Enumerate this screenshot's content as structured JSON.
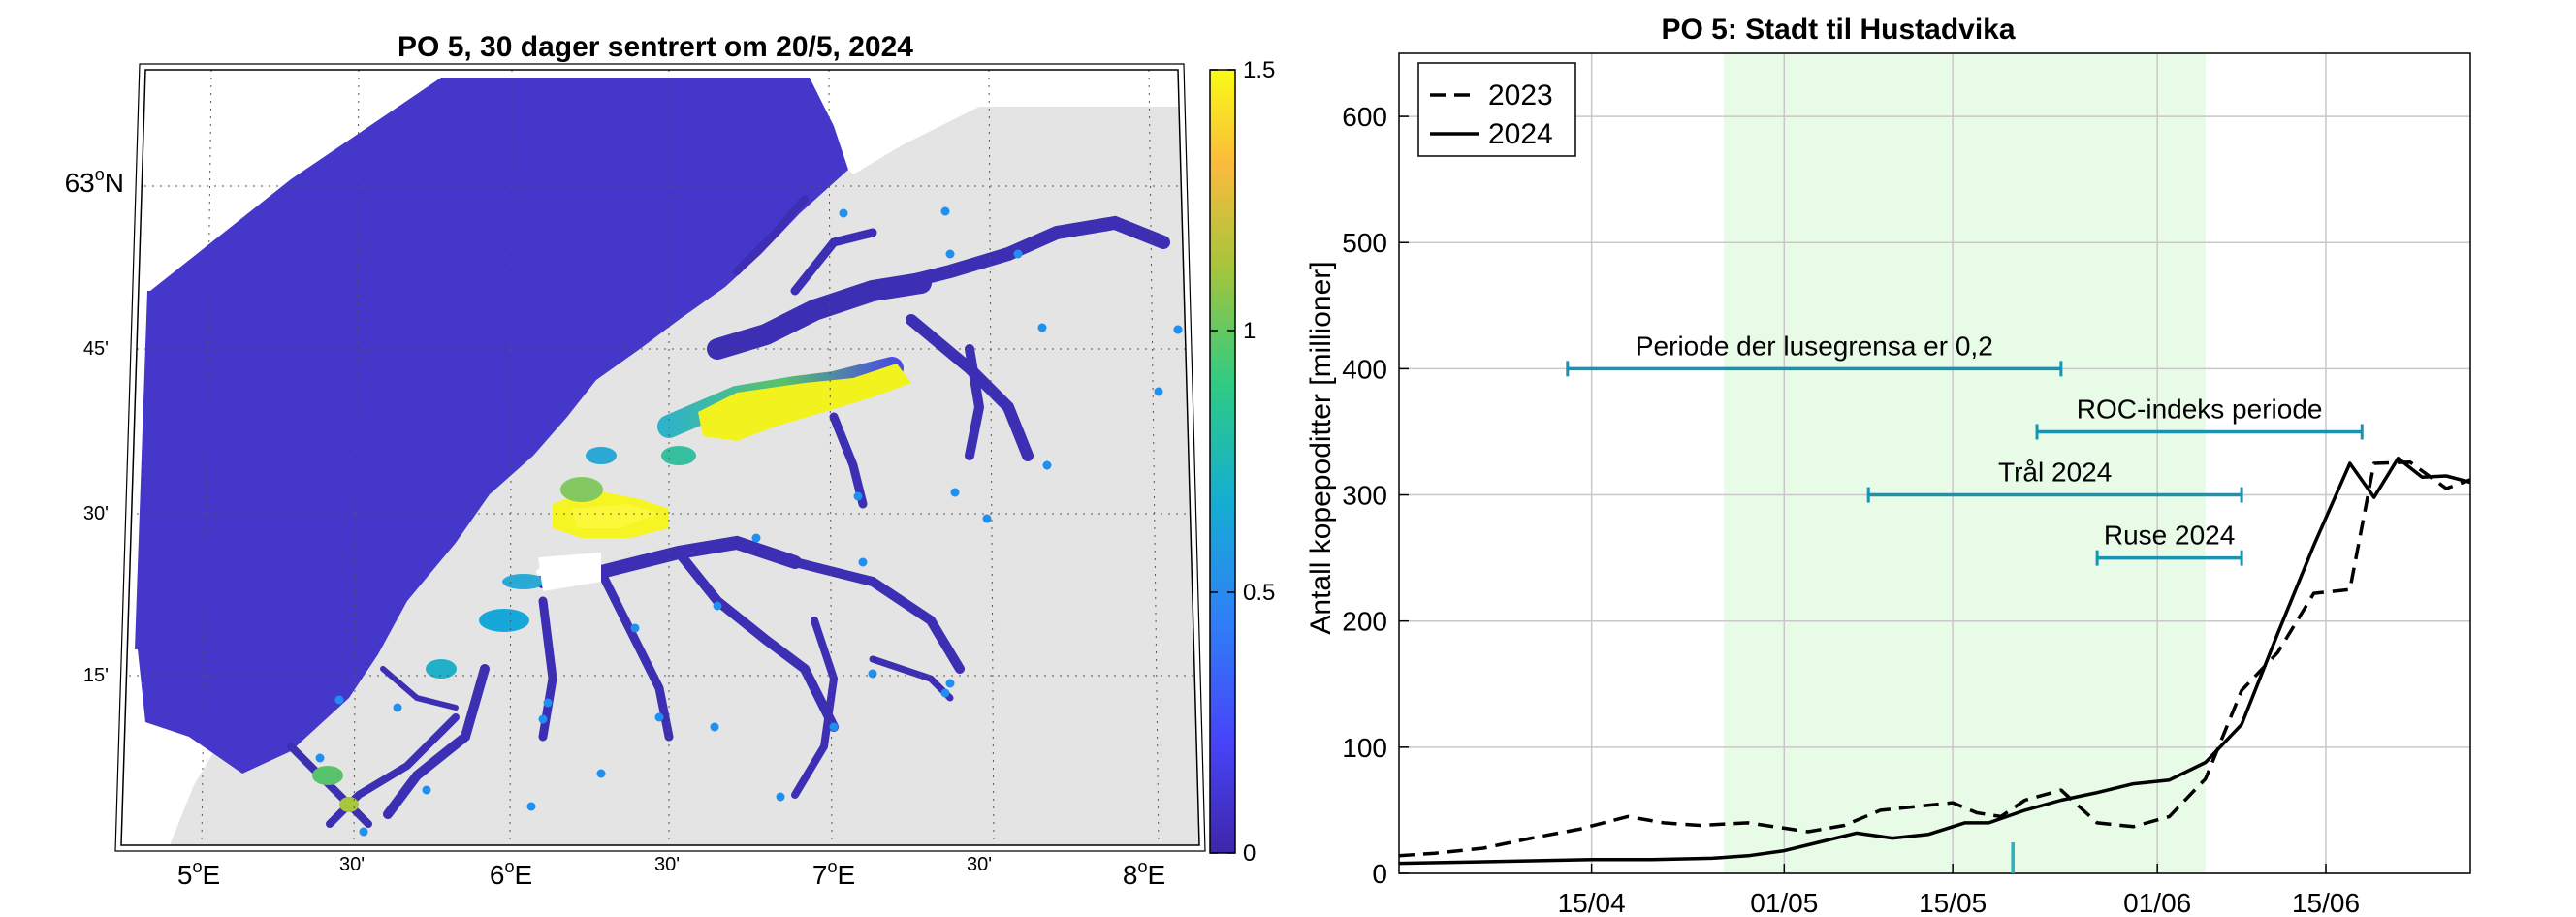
{
  "chart_data": [
    {
      "type": "heatmap",
      "title": "PO 5, 30 dager sentrert om 20/5, 2024",
      "x_ticks": [
        "5",
        "30'",
        "6",
        "30'",
        "7",
        "30'",
        "8"
      ],
      "x_unit": "E",
      "y_ticks": [
        "15'",
        "30'",
        "45'",
        "63"
      ],
      "y_unit": "N",
      "colorbar": {
        "min": 0,
        "max": 1.5,
        "ticks": [
          "0",
          "0.5",
          "1",
          "1.5"
        ],
        "colormap": [
          "#3e26a8",
          "#4743f8",
          "#2f80f6",
          "#15aed2",
          "#2fcb83",
          "#a8c53b",
          "#fbbb3d",
          "#f9fb15"
        ]
      },
      "colors": {
        "land": "#e4e4e4",
        "sea_model": "#4537c9",
        "site_marker": "#1f8ff0"
      }
    },
    {
      "type": "line",
      "title": "PO 5: Stadt til Hustadvika",
      "ylabel": "Antall kopepoditter [millioner]",
      "xlabel": "",
      "x_ticks": [
        "15/04",
        "01/05",
        "15/05",
        "01/06",
        "15/06"
      ],
      "y_ticks": [
        "0",
        "100",
        "200",
        "300",
        "400",
        "500",
        "600"
      ],
      "xlim": [
        "2024-03-30",
        "2024-06-27"
      ],
      "ylim": [
        0,
        650
      ],
      "grid": true,
      "legend": "top-left",
      "shaded_period": {
        "start": "2024-04-26",
        "end": "2024-06-05",
        "color": "#e7fbe7"
      },
      "series": [
        {
          "name": "2023",
          "style": "dashed",
          "x": [
            "2024-03-30",
            "2024-04-02",
            "2024-04-06",
            "2024-04-10",
            "2024-04-14",
            "2024-04-18",
            "2024-04-21",
            "2024-04-24",
            "2024-04-28",
            "2024-05-03",
            "2024-05-06",
            "2024-05-09",
            "2024-05-12",
            "2024-05-15",
            "2024-05-17",
            "2024-05-19",
            "2024-05-21",
            "2024-05-24",
            "2024-05-27",
            "2024-05-30",
            "2024-06-02",
            "2024-06-05",
            "2024-06-08",
            "2024-06-11",
            "2024-06-14",
            "2024-06-17",
            "2024-06-19",
            "2024-06-22",
            "2024-06-25",
            "2024-06-27"
          ],
          "values": [
            14,
            16,
            20,
            28,
            35,
            45,
            40,
            38,
            40,
            33,
            38,
            50,
            53,
            56,
            48,
            45,
            58,
            66,
            40,
            37,
            45,
            75,
            145,
            175,
            222,
            225,
            325,
            326,
            305,
            312
          ]
        },
        {
          "name": "2024",
          "style": "solid",
          "x": [
            "2024-03-30",
            "2024-04-05",
            "2024-04-10",
            "2024-04-15",
            "2024-04-20",
            "2024-04-25",
            "2024-04-28",
            "2024-05-01",
            "2024-05-04",
            "2024-05-07",
            "2024-05-10",
            "2024-05-13",
            "2024-05-16",
            "2024-05-18",
            "2024-05-21",
            "2024-05-24",
            "2024-05-27",
            "2024-05-30",
            "2024-06-02",
            "2024-06-05",
            "2024-06-08",
            "2024-06-11",
            "2024-06-14",
            "2024-06-17",
            "2024-06-19",
            "2024-06-21",
            "2024-06-23",
            "2024-06-25",
            "2024-06-27"
          ],
          "values": [
            8,
            9,
            10,
            11,
            11,
            12,
            14,
            18,
            25,
            32,
            28,
            31,
            40,
            40,
            50,
            58,
            64,
            71,
            74,
            88,
            118,
            190,
            260,
            325,
            298,
            329,
            314,
            315,
            310
          ]
        }
      ],
      "intervals": [
        {
          "label": "Periode der lusegrensa er 0,2",
          "start": "2024-04-13",
          "end": "2024-05-24",
          "y": 400
        },
        {
          "label": "ROC-indeks periode",
          "start": "2024-05-22",
          "end": "2024-06-18",
          "y": 350
        },
        {
          "label": "Trål 2024",
          "start": "2024-05-08",
          "end": "2024-06-08",
          "y": 300
        },
        {
          "label": "Ruse 2024",
          "start": "2024-05-27",
          "end": "2024-06-08",
          "y": 250
        }
      ],
      "marker_date": "2024-05-20",
      "colors": {
        "interval": "#1b92b0",
        "marker": "#2ab0c0",
        "line": "#000000"
      }
    }
  ]
}
